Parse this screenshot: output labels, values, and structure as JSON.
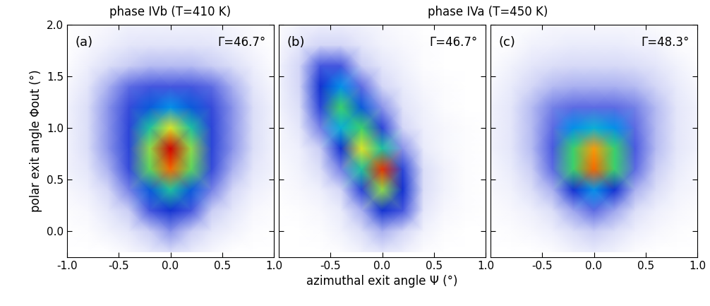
{
  "chart_data": [
    {
      "type": "heatmap",
      "title": "phase IVb (T=410 K)",
      "y_label": "polar exit angle Φout (°)",
      "annotations": [
        "(a)",
        "Γ=46.7°"
      ],
      "x": [
        -1.0,
        -0.8,
        -0.6,
        -0.4,
        -0.2,
        0.0,
        0.2,
        0.4,
        0.6,
        0.8,
        1.0
      ],
      "y": [
        -0.2,
        0.0,
        0.2,
        0.4,
        0.6,
        0.8,
        1.0,
        1.2,
        1.4,
        1.6,
        1.8,
        2.0
      ],
      "cells": [
        [
          0,
          0,
          0,
          2,
          5,
          8,
          5,
          2,
          0,
          0,
          0
        ],
        [
          0,
          1,
          3,
          6,
          12,
          18,
          12,
          6,
          3,
          1,
          0
        ],
        [
          1,
          2,
          6,
          12,
          25,
          35,
          25,
          12,
          6,
          2,
          1
        ],
        [
          2,
          4,
          10,
          20,
          40,
          55,
          40,
          20,
          10,
          4,
          2
        ],
        [
          3,
          6,
          15,
          28,
          62,
          85,
          62,
          28,
          15,
          6,
          3
        ],
        [
          3,
          8,
          18,
          30,
          65,
          95,
          65,
          30,
          18,
          8,
          3
        ],
        [
          3,
          8,
          18,
          30,
          55,
          70,
          55,
          30,
          18,
          8,
          3
        ],
        [
          3,
          8,
          18,
          28,
          40,
          45,
          40,
          28,
          18,
          8,
          3
        ],
        [
          2,
          6,
          15,
          22,
          25,
          25,
          25,
          22,
          15,
          6,
          2
        ],
        [
          1,
          4,
          8,
          12,
          14,
          14,
          14,
          12,
          8,
          4,
          1
        ],
        [
          0,
          2,
          4,
          6,
          7,
          7,
          7,
          6,
          4,
          2,
          0
        ],
        [
          0,
          1,
          2,
          3,
          3,
          3,
          3,
          3,
          2,
          1,
          0
        ]
      ],
      "xlim": [
        -1.0,
        1.0
      ],
      "ylim": [
        -0.25,
        2.0
      ],
      "xticks": [
        {
          "value": -1.0,
          "label": "-1.0"
        },
        {
          "value": -0.5,
          "label": "-0.5"
        },
        {
          "value": 0.0,
          "label": "0.0"
        },
        {
          "value": 0.5,
          "label": "0.5"
        },
        {
          "value": 1.0,
          "label": "1.0"
        }
      ],
      "yticks": [
        {
          "value": 0.0,
          "label": "0.0"
        },
        {
          "value": 0.5,
          "label": "0.5"
        },
        {
          "value": 1.0,
          "label": "1.0"
        },
        {
          "value": 1.5,
          "label": "1.5"
        },
        {
          "value": 2.0,
          "label": "2.0"
        }
      ]
    },
    {
      "type": "heatmap",
      "title": "phase IVa (T=450 K)",
      "x_label": "azimuthal exit angle Ψ (°)",
      "annotations": [
        "(b)",
        "Γ=46.7°"
      ],
      "tick_labels": "x",
      "x": [
        -1.0,
        -0.8,
        -0.6,
        -0.4,
        -0.2,
        0.0,
        0.2,
        0.4,
        0.6,
        0.8,
        1.0
      ],
      "y": [
        -0.2,
        0.0,
        0.2,
        0.4,
        0.6,
        0.8,
        1.0,
        1.2,
        1.4,
        1.6,
        1.8,
        2.0
      ],
      "cells": [
        [
          0,
          0,
          0,
          1,
          3,
          6,
          4,
          1,
          0,
          0,
          0
        ],
        [
          0,
          0,
          1,
          3,
          8,
          15,
          10,
          3,
          1,
          0,
          0
        ],
        [
          0,
          1,
          2,
          5,
          15,
          35,
          25,
          6,
          2,
          1,
          0
        ],
        [
          1,
          2,
          4,
          10,
          30,
          65,
          35,
          8,
          3,
          1,
          0
        ],
        [
          1,
          3,
          8,
          20,
          55,
          90,
          30,
          8,
          3,
          1,
          0
        ],
        [
          2,
          4,
          12,
          35,
          70,
          55,
          18,
          5,
          2,
          1,
          0
        ],
        [
          2,
          6,
          20,
          50,
          60,
          30,
          10,
          4,
          2,
          1,
          0
        ],
        [
          3,
          8,
          30,
          60,
          40,
          18,
          7,
          3,
          1,
          0,
          0
        ],
        [
          3,
          10,
          35,
          45,
          22,
          10,
          5,
          2,
          1,
          0,
          0
        ],
        [
          3,
          10,
          25,
          25,
          12,
          6,
          3,
          1,
          0,
          0,
          0
        ],
        [
          2,
          6,
          10,
          10,
          6,
          3,
          2,
          1,
          0,
          0,
          0
        ],
        [
          1,
          3,
          4,
          4,
          3,
          2,
          1,
          0,
          0,
          0,
          0
        ]
      ],
      "xlim": [
        -1.0,
        1.0
      ],
      "ylim": [
        -0.25,
        2.0
      ],
      "xticks": [
        {
          "value": -0.5,
          "label": "-0.5"
        },
        {
          "value": 0.0,
          "label": "0.0"
        },
        {
          "value": 0.5,
          "label": "0.5"
        },
        {
          "value": 1.0,
          "label": "1.0"
        }
      ],
      "yticks": [
        0.0,
        0.5,
        1.0,
        1.5,
        2.0
      ]
    },
    {
      "type": "heatmap",
      "annotations": [
        "(c)",
        "Γ=48.3°"
      ],
      "tick_labels": "x",
      "x": [
        -1.0,
        -0.8,
        -0.6,
        -0.4,
        -0.2,
        0.0,
        0.2,
        0.4,
        0.6,
        0.8,
        1.0
      ],
      "y": [
        -0.2,
        0.0,
        0.2,
        0.4,
        0.6,
        0.8,
        1.0,
        1.2,
        1.4,
        1.6,
        1.8,
        2.0
      ],
      "cells": [
        [
          0,
          0,
          0,
          1,
          3,
          5,
          3,
          1,
          0,
          0,
          0
        ],
        [
          0,
          1,
          2,
          4,
          8,
          12,
          8,
          4,
          2,
          1,
          0
        ],
        [
          1,
          2,
          4,
          8,
          16,
          22,
          16,
          8,
          4,
          2,
          1
        ],
        [
          2,
          3,
          8,
          15,
          35,
          45,
          35,
          15,
          8,
          3,
          2
        ],
        [
          2,
          5,
          12,
          22,
          60,
          85,
          60,
          22,
          12,
          5,
          2
        ],
        [
          3,
          6,
          14,
          24,
          60,
          80,
          60,
          24,
          14,
          6,
          3
        ],
        [
          3,
          6,
          14,
          22,
          45,
          50,
          45,
          22,
          14,
          6,
          3
        ],
        [
          3,
          6,
          14,
          20,
          22,
          22,
          22,
          20,
          14,
          6,
          3
        ],
        [
          2,
          5,
          10,
          14,
          15,
          15,
          15,
          14,
          10,
          5,
          2
        ],
        [
          1,
          3,
          6,
          8,
          9,
          9,
          9,
          8,
          6,
          3,
          1
        ],
        [
          0,
          1,
          3,
          4,
          5,
          5,
          5,
          4,
          3,
          1,
          0
        ],
        [
          0,
          1,
          1,
          2,
          2,
          2,
          2,
          2,
          1,
          1,
          0
        ]
      ],
      "xlim": [
        -1.0,
        1.0
      ],
      "ylim": [
        -0.25,
        2.0
      ],
      "xticks": [
        {
          "value": -0.5,
          "label": "-0.5"
        },
        {
          "value": 0.0,
          "label": "0.0"
        },
        {
          "value": 0.5,
          "label": "0.5"
        },
        {
          "value": 1.0,
          "label": "1.0"
        }
      ],
      "yticks": [
        0.0,
        0.5,
        1.0,
        1.5,
        2.0
      ]
    }
  ]
}
